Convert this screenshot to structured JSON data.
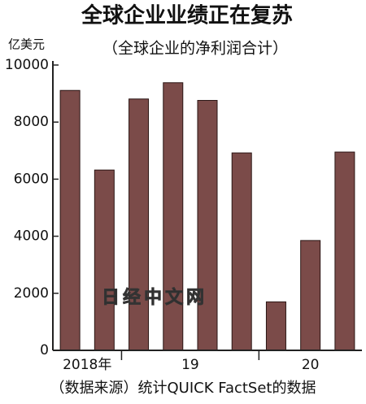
{
  "chart_data": {
    "type": "bar",
    "title": "全球企业业绩正在复苏",
    "subtitle": "（全球企业的净利润合计）",
    "y_label": "亿美元",
    "source": "（数据来源）统计QUICK FactSet的数据",
    "watermark": "日经中文网",
    "categories": [
      null,
      null,
      null,
      null,
      null,
      null,
      null,
      null,
      null
    ],
    "groups": [
      {
        "label": "2018年",
        "size": 2
      },
      {
        "label": "19",
        "size": 4
      },
      {
        "label": "20",
        "size": 3
      }
    ],
    "values": [
      9110,
      6320,
      8810,
      9380,
      8760,
      6920,
      1700,
      3850,
      6950
    ],
    "color": "#7b4b49",
    "ylim": [
      0,
      10000
    ],
    "yticks": [
      0,
      2000,
      4000,
      6000,
      8000,
      10000
    ],
    "grid": false
  }
}
